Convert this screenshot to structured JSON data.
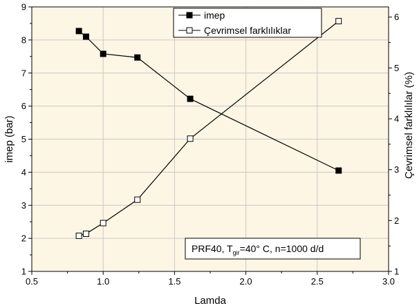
{
  "chart_data": {
    "type": "line",
    "title": "",
    "xlabel": "Lamda",
    "ylabel_left": "imep (bar)",
    "ylabel_right": "Çevrimsel farklılılar (%)",
    "xlim": [
      0.5,
      3.0
    ],
    "ylim_left": [
      1,
      9
    ],
    "ylim_right": [
      1,
      6.2
    ],
    "x_ticks": [
      "0.5",
      "1.0",
      "1.5",
      "2.0",
      "2.5",
      "3.0"
    ],
    "y_ticks_left": [
      "1",
      "2",
      "3",
      "4",
      "5",
      "6",
      "7",
      "8",
      "9"
    ],
    "y_ticks_right": [
      "1",
      "2",
      "3",
      "4",
      "5",
      "6"
    ],
    "grid": true,
    "legend_position": "top-right",
    "series": [
      {
        "name": "imep",
        "axis": "left",
        "marker": "filled-square",
        "x": [
          0.83,
          0.88,
          1.0,
          1.24,
          1.61,
          2.65
        ],
        "y": [
          8.27,
          8.1,
          7.58,
          7.47,
          6.22,
          4.05
        ]
      },
      {
        "name": "Çevrimsel farklılıklar",
        "axis": "right",
        "marker": "open-square",
        "x": [
          0.83,
          0.88,
          1.0,
          1.24,
          1.61,
          2.65
        ],
        "y": [
          1.7,
          1.74,
          1.95,
          2.41,
          3.61,
          5.92
        ]
      }
    ],
    "annotation": {
      "text_main": "PRF40, T",
      "text_sub": "gir",
      "text_tail": "=40° C, n=1000 d/d"
    },
    "colors": {
      "plot_background": "#fdf6e4",
      "grid": "#c8c8c8",
      "line": "#000000"
    }
  }
}
